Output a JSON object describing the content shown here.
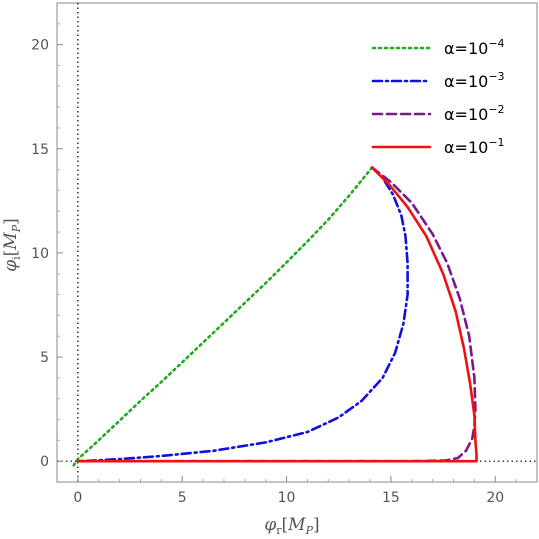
{
  "chart_data": {
    "type": "line",
    "title": "",
    "xlabel": {
      "symbol": "φ",
      "sub": "r",
      "unit_main": "M",
      "unit_sub": "P"
    },
    "ylabel": {
      "symbol": "φ",
      "sub": "i",
      "unit_main": "M",
      "unit_sub": "P"
    },
    "xlim": [
      -1,
      22
    ],
    "ylim": [
      -1,
      22
    ],
    "x_ticks": [
      "0",
      "5",
      "10",
      "15",
      "20"
    ],
    "y_ticks": [
      "0",
      "5",
      "10",
      "15",
      "20"
    ],
    "grid": false,
    "reference_lines": [
      "x = 0 (dotted)",
      "y = 0 (dotted)"
    ],
    "legend_position": "top-right",
    "series": [
      {
        "name": "α=10^-4",
        "label_base": "α=10",
        "label_exp": "−4",
        "color": "#22aa22",
        "style": "dotted",
        "x": [
          -0.2,
          0,
          1,
          2,
          3,
          4,
          5,
          6,
          7,
          8,
          9,
          10,
          11,
          12,
          13,
          14.1
        ],
        "y": [
          -0.2,
          0.1,
          1.0,
          1.95,
          2.9,
          3.8,
          4.75,
          5.7,
          6.65,
          7.6,
          8.55,
          9.55,
          10.55,
          11.6,
          12.75,
          14.1
        ]
      },
      {
        "name": "α=10^-3",
        "label_base": "α=10",
        "label_exp": "−3",
        "color": "#1111dd",
        "style": "dashdot",
        "x": [
          14.1,
          14.6,
          15.1,
          15.5,
          15.7,
          15.8,
          15.8,
          15.6,
          15.2,
          14.6,
          13.6,
          12.5,
          11.0,
          9.0,
          6.5,
          4.0,
          2.0,
          0.5,
          0
        ],
        "y": [
          14.1,
          13.6,
          12.8,
          11.8,
          10.8,
          9.5,
          8.0,
          6.6,
          5.2,
          4.0,
          2.9,
          2.1,
          1.4,
          0.9,
          0.5,
          0.25,
          0.1,
          0.02,
          0
        ]
      },
      {
        "name": "α=10^-2",
        "label_base": "α=10",
        "label_exp": "−2",
        "color": "#7a1a8a",
        "style": "dashed",
        "x": [
          14.1,
          15.0,
          16.0,
          17.0,
          17.7,
          18.3,
          18.75,
          19.0,
          19.05,
          19.0,
          18.9,
          18.6,
          18.2,
          17.6,
          16.0,
          10.0,
          5.0,
          0
        ],
        "y": [
          14.1,
          13.4,
          12.4,
          10.9,
          9.5,
          7.8,
          6.0,
          4.0,
          2.5,
          1.7,
          1.1,
          0.5,
          0.15,
          0.03,
          0,
          0,
          0,
          0
        ]
      },
      {
        "name": "α=10^-1",
        "label_base": "α=10",
        "label_exp": "−1",
        "color": "#ee1111",
        "style": "solid",
        "x": [
          14.1,
          14.9,
          15.8,
          16.7,
          17.5,
          18.1,
          18.5,
          18.8,
          19.0,
          19.05,
          19.1,
          19.1,
          18.9,
          17.0,
          12.0,
          6.0,
          0
        ],
        "y": [
          14.1,
          13.3,
          12.2,
          10.8,
          9.0,
          7.2,
          5.4,
          3.7,
          2.2,
          1.0,
          0.3,
          0,
          0,
          0,
          0,
          0,
          0
        ]
      }
    ]
  }
}
